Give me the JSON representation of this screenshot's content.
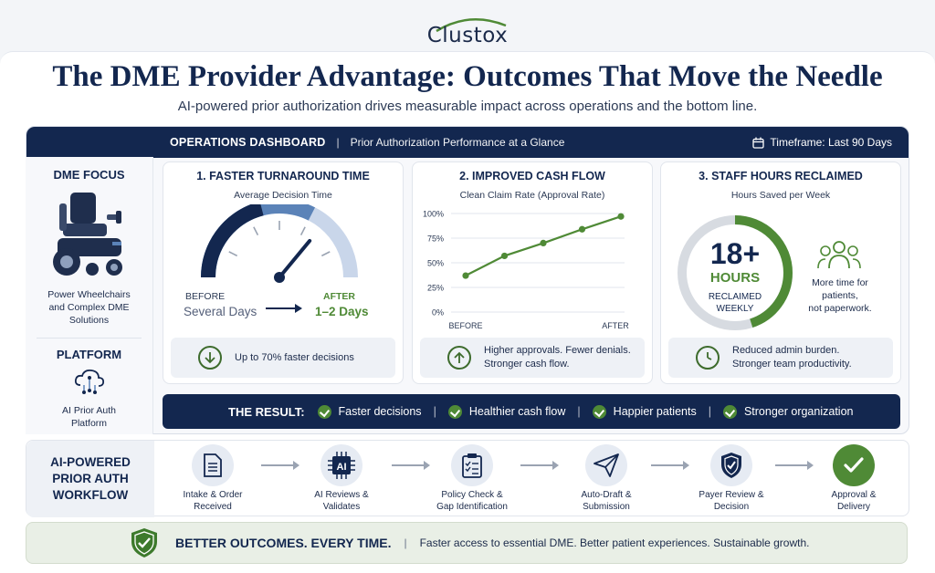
{
  "brand": {
    "logo_text": "Clustox"
  },
  "header": {
    "title": "The DME Provider Advantage: Outcomes That Move the Needle",
    "subtitle": "AI-powered prior authorization drives measurable impact across operations and the bottom line."
  },
  "dashboard": {
    "label": "OPERATIONS DASHBOARD",
    "separator": "|",
    "sublabel": "Prior Authorization Performance at a Glance",
    "timeframe": "Timeframe: Last 90 Days"
  },
  "sidebar": {
    "focus_heading": "DME FOCUS",
    "focus_text": [
      "Power Wheelchairs",
      "and Complex DME",
      "Solutions"
    ],
    "platform_heading": "PLATFORM",
    "platform_text": [
      "AI Prior Auth",
      "Platform"
    ]
  },
  "card1": {
    "title": "1.  FASTER TURNAROUND TIME",
    "subtitle": "Average Decision Time",
    "before_label": "BEFORE",
    "before_value": "Several Days",
    "after_label": "AFTER",
    "after_value": "1–2 Days",
    "footer": "Up to 70% faster decisions",
    "gauge_level": 0.72
  },
  "card2": {
    "title": "2.  IMPROVED CASH FLOW",
    "subtitle": "Clean Claim Rate (Approval Rate)",
    "footer_lines": [
      "Higher approvals. Fewer denials.",
      "Stronger cash flow."
    ]
  },
  "chart_data": {
    "type": "line",
    "title": "",
    "x": [
      "BEFORE",
      "",
      "",
      "",
      "AFTER"
    ],
    "x_tick_labels": [
      "BEFORE",
      "AFTER"
    ],
    "y_tick_labels": [
      "100%",
      "75%",
      "50%",
      "25%",
      "0%"
    ],
    "values": [
      37,
      57,
      70,
      84,
      97
    ],
    "ylim": [
      0,
      100
    ],
    "grid": true,
    "color": "#4f8a36"
  },
  "card3": {
    "title": "3.  STAFF HOURS RECLAIMED",
    "subtitle": "Hours Saved per Week",
    "big_value": "18+",
    "unit": "HOURS",
    "caption_lines": [
      "RECLAIMED",
      "WEEKLY"
    ],
    "side_lines": [
      "More time for",
      "patients,",
      "not paperwork."
    ],
    "footer_lines": [
      "Reduced admin burden.",
      "Stronger team productivity."
    ],
    "ring_fraction": 0.45
  },
  "result": {
    "label": "THE RESULT:",
    "items": [
      "Faster decisions",
      "Healthier cash flow",
      "Happier patients",
      "Stronger organization"
    ]
  },
  "workflow": {
    "title_lines": [
      "AI-POWERED",
      "PRIOR AUTH",
      "WORKFLOW"
    ],
    "steps": [
      {
        "lines": [
          "Intake & Order",
          "Received"
        ],
        "icon": "document-icon"
      },
      {
        "lines": [
          "AI Reviews &",
          "Validates"
        ],
        "icon": "ai-chip-icon"
      },
      {
        "lines": [
          "Policy Check &",
          "Gap Identification"
        ],
        "icon": "clipboard-check-icon"
      },
      {
        "lines": [
          "Auto-Draft &",
          "Submission"
        ],
        "icon": "paper-plane-icon"
      },
      {
        "lines": [
          "Payer Review &",
          "Decision"
        ],
        "icon": "shield-check-icon"
      },
      {
        "lines": [
          "Approval &",
          "Delivery"
        ],
        "icon": "check-circle-icon"
      }
    ]
  },
  "bottom": {
    "title": "BETTER OUTCOMES. EVERY TIME.",
    "separator": "|",
    "text": "Faster access to essential DME. Better patient experiences. Sustainable growth."
  },
  "colors": {
    "navy": "#13274f",
    "green": "#4f8a36",
    "steel": "#5b83b8"
  }
}
